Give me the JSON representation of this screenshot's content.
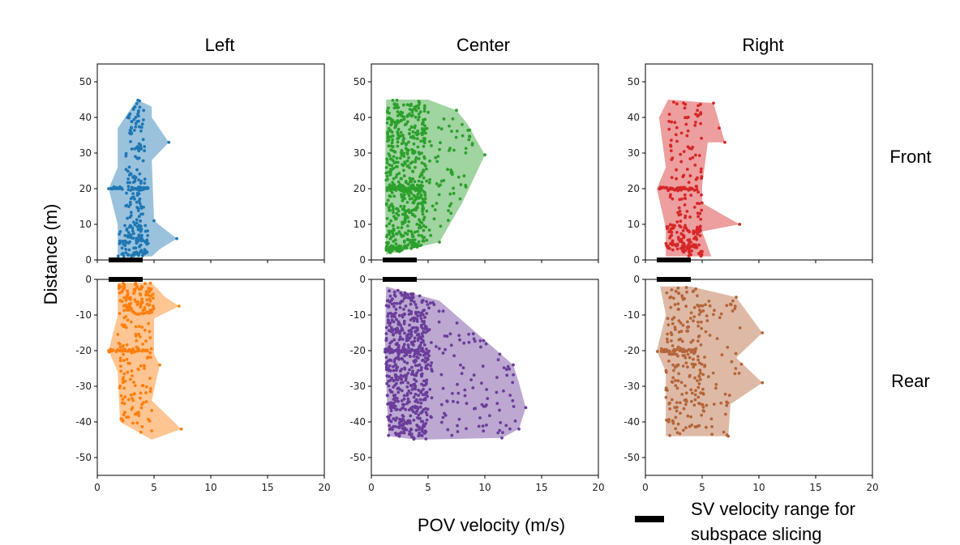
{
  "figure": {
    "column_titles": [
      "Left",
      "Center",
      "Right"
    ],
    "row_titles": [
      "Front",
      "Rear"
    ],
    "ylabel": "Distance (m)",
    "xlabel": "POV velocity (m/s)",
    "legend": {
      "line1": "SV velocity range for",
      "line2": "subspace slicing"
    }
  },
  "chart_data": {
    "type": "scatter",
    "xlim": [
      0,
      20
    ],
    "xticks": [
      0,
      5,
      10,
      15,
      20
    ],
    "sv_velocity_range": [
      1,
      4
    ],
    "rows": [
      {
        "name": "Front",
        "ylim": [
          0,
          55
        ],
        "yticks": [
          0,
          10,
          20,
          30,
          40,
          50
        ]
      },
      {
        "name": "Rear",
        "ylim": [
          -55,
          0
        ],
        "yticks": [
          0,
          -10,
          -20,
          -30,
          -40,
          -50
        ]
      }
    ],
    "series": [
      {
        "name": "Left-Front",
        "row": 0,
        "col": 0,
        "color": "#1f77b4",
        "hull": [
          [
            1.8,
            1
          ],
          [
            4.8,
            1
          ],
          [
            5.5,
            3
          ],
          [
            7,
            6
          ],
          [
            5,
            11
          ],
          [
            4.8,
            28
          ],
          [
            6.3,
            33
          ],
          [
            4.8,
            40
          ],
          [
            4.8,
            43
          ],
          [
            3.5,
            45
          ],
          [
            1.8,
            37
          ],
          [
            1.8,
            26
          ],
          [
            1,
            20
          ],
          [
            1.8,
            10
          ]
        ],
        "bands": [
          [
            2.5,
            4.2,
            1,
            45,
            150
          ],
          [
            1.3,
            4.5,
            1,
            10,
            80
          ]
        ],
        "clusters": [
          [
            1,
            4.5,
            20,
            0.8,
            40
          ]
        ],
        "outliers": [
          [
            6.3,
            33
          ],
          [
            7,
            6
          ],
          [
            1,
            20
          ],
          [
            5,
            11
          ]
        ]
      },
      {
        "name": "Center-Front",
        "row": 0,
        "col": 1,
        "color": "#2ca02c",
        "hull": [
          [
            1.3,
            1.5
          ],
          [
            6,
            5
          ],
          [
            8,
            16
          ],
          [
            10,
            29.5
          ],
          [
            8.5,
            38
          ],
          [
            7.5,
            42
          ],
          [
            5,
            45
          ],
          [
            1.3,
            45
          ],
          [
            1.2,
            20
          ]
        ],
        "bands": [
          [
            1.3,
            4.8,
            2,
            45,
            520
          ],
          [
            4.8,
            9,
            2,
            42,
            70
          ]
        ],
        "clusters": [
          [
            1.2,
            4.5,
            20,
            1,
            60
          ],
          [
            1.3,
            5.5,
            3,
            1.5,
            60
          ]
        ],
        "outliers": [
          [
            10,
            29.5
          ],
          [
            8,
            38
          ],
          [
            7.5,
            42
          ],
          [
            6,
            5
          ]
        ]
      },
      {
        "name": "Right-Front",
        "row": 0,
        "col": 2,
        "color": "#d62728",
        "hull": [
          [
            1.8,
            1
          ],
          [
            5.8,
            1
          ],
          [
            5,
            8
          ],
          [
            8.3,
            10
          ],
          [
            5,
            16
          ],
          [
            5,
            21
          ],
          [
            5.5,
            33
          ],
          [
            7,
            33
          ],
          [
            6,
            44
          ],
          [
            2,
            45
          ],
          [
            1.2,
            40
          ],
          [
            1.8,
            26
          ],
          [
            1,
            20
          ],
          [
            1.8,
            9
          ]
        ],
        "bands": [
          [
            2,
            5,
            1,
            45,
            120
          ],
          [
            1.5,
            5,
            1,
            10,
            70
          ]
        ],
        "clusters": [
          [
            1,
            4.6,
            20,
            0.8,
            45
          ],
          [
            1.5,
            4.5,
            4,
            2,
            40
          ]
        ],
        "outliers": [
          [
            8.3,
            10
          ],
          [
            7,
            33
          ],
          [
            6,
            44
          ],
          [
            6.5,
            37
          ]
        ]
      },
      {
        "name": "Left-Rear",
        "row": 1,
        "col": 0,
        "color": "#ff7f0e",
        "hull": [
          [
            1.8,
            -1
          ],
          [
            4.8,
            -1
          ],
          [
            6,
            -5
          ],
          [
            7.2,
            -7.5
          ],
          [
            5,
            -11
          ],
          [
            5,
            -21
          ],
          [
            5.5,
            -24
          ],
          [
            4.8,
            -34
          ],
          [
            7.4,
            -42
          ],
          [
            4.8,
            -45
          ],
          [
            2,
            -40
          ],
          [
            1.8,
            -26
          ],
          [
            1,
            -20
          ],
          [
            1.8,
            -10
          ]
        ],
        "bands": [
          [
            1.8,
            4.8,
            -45,
            -1,
            170
          ],
          [
            1.5,
            5,
            -10,
            -1,
            60
          ]
        ],
        "clusters": [
          [
            1,
            4.6,
            -20,
            0.8,
            45
          ]
        ],
        "outliers": [
          [
            7.2,
            -7.5
          ],
          [
            7.4,
            -42
          ],
          [
            1,
            -20
          ],
          [
            5.5,
            -24
          ]
        ]
      },
      {
        "name": "Center-Rear",
        "row": 1,
        "col": 1,
        "color": "#6a3d9a",
        "hull": [
          [
            1.3,
            -2
          ],
          [
            6,
            -6
          ],
          [
            12.5,
            -24
          ],
          [
            13,
            -29
          ],
          [
            13.6,
            -36
          ],
          [
            13,
            -42
          ],
          [
            11.5,
            -44.5
          ],
          [
            4,
            -45
          ],
          [
            1.5,
            -44
          ],
          [
            1.2,
            -20
          ]
        ],
        "bands": [
          [
            1.3,
            5,
            -45,
            -2,
            560
          ],
          [
            5,
            13,
            -44,
            -6,
            110
          ]
        ],
        "clusters": [
          [
            1.2,
            4.6,
            -20,
            1,
            60
          ]
        ],
        "outliers": [
          [
            13.6,
            -36
          ],
          [
            13,
            -42
          ],
          [
            12.5,
            -24
          ],
          [
            11.5,
            -44.5
          ]
        ]
      },
      {
        "name": "Right-Rear",
        "row": 1,
        "col": 2,
        "color": "#b5653a",
        "hull": [
          [
            1.3,
            -2
          ],
          [
            4,
            -2
          ],
          [
            8,
            -5
          ],
          [
            10.3,
            -15
          ],
          [
            8,
            -22
          ],
          [
            10.3,
            -29
          ],
          [
            7.5,
            -35
          ],
          [
            7.3,
            -44
          ],
          [
            1.8,
            -44
          ],
          [
            1.8,
            -26
          ],
          [
            1,
            -20
          ],
          [
            1.8,
            -10
          ]
        ],
        "bands": [
          [
            1.8,
            5,
            -44,
            -2,
            190
          ],
          [
            5,
            8.5,
            -44,
            -5,
            60
          ]
        ],
        "clusters": [
          [
            1,
            4.6,
            -20,
            0.8,
            40
          ]
        ],
        "outliers": [
          [
            10.3,
            -15
          ],
          [
            10.3,
            -29
          ],
          [
            8,
            -5
          ],
          [
            7.3,
            -44
          ]
        ]
      }
    ]
  }
}
